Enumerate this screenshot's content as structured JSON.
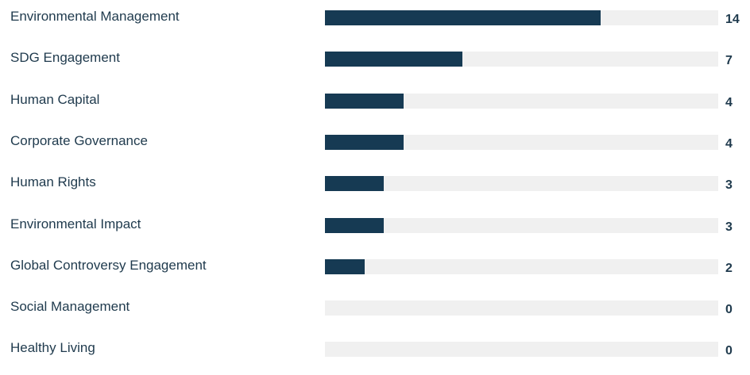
{
  "chart_data": {
    "type": "bar",
    "orientation": "horizontal",
    "categories": [
      "Environmental Management",
      "SDG Engagement",
      "Human Capital",
      "Corporate Governance",
      "Human Rights",
      "Environmental Impact",
      "Global Controversy Engagement",
      "Social Management",
      "Healthy Living"
    ],
    "values": [
      14,
      7,
      4,
      4,
      3,
      3,
      2,
      0,
      0
    ],
    "xlim": [
      0,
      20
    ],
    "grid": false,
    "legend": "none",
    "bar_color": "#163a53",
    "track_color": "#f0f0f0"
  }
}
